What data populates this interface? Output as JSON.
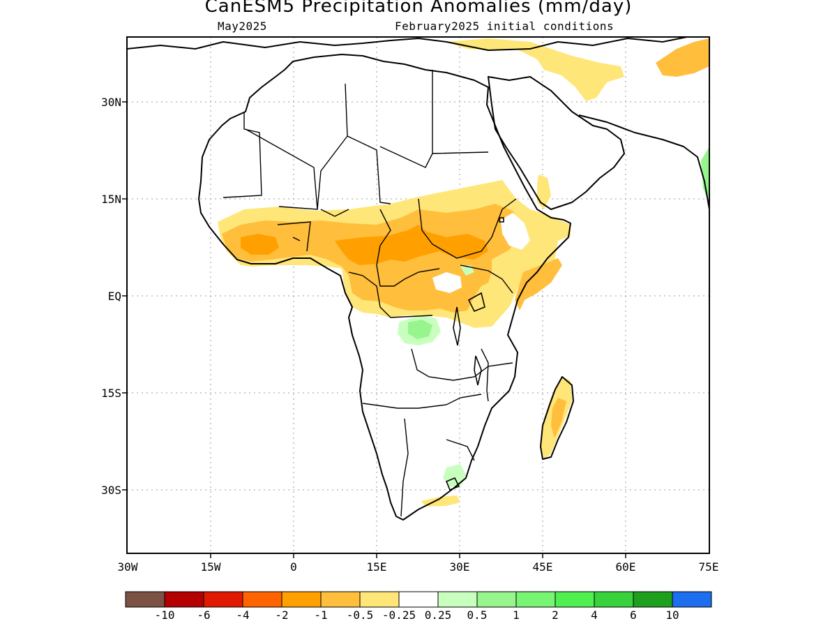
{
  "title": "CanESM5 Precipitation Anomalies (mm/day)",
  "subtitle_left": "May2025",
  "subtitle_right": "February2025 initial conditions",
  "lat_labels": [
    "30N",
    "15N",
    "EQ",
    "15S",
    "30S"
  ],
  "lon_labels": [
    "30W",
    "15W",
    "0",
    "15E",
    "30E",
    "45E",
    "60E",
    "75E"
  ],
  "colorbar": {
    "colors": [
      "#7b5244",
      "#b40000",
      "#e01a00",
      "#ff6400",
      "#ffa000",
      "#ffbe3c",
      "#ffe678",
      "#ffffff",
      "#c8ffbe",
      "#96f58c",
      "#78f573",
      "#50f050",
      "#37d23c",
      "#1ea01e",
      "#1e6ef0"
    ],
    "labels": [
      "-10",
      "-6",
      "-4",
      "-2",
      "-1",
      "-0.5",
      "-0.25",
      "0.25",
      "0.5",
      "1",
      "2",
      "4",
      "6",
      "10"
    ]
  }
}
